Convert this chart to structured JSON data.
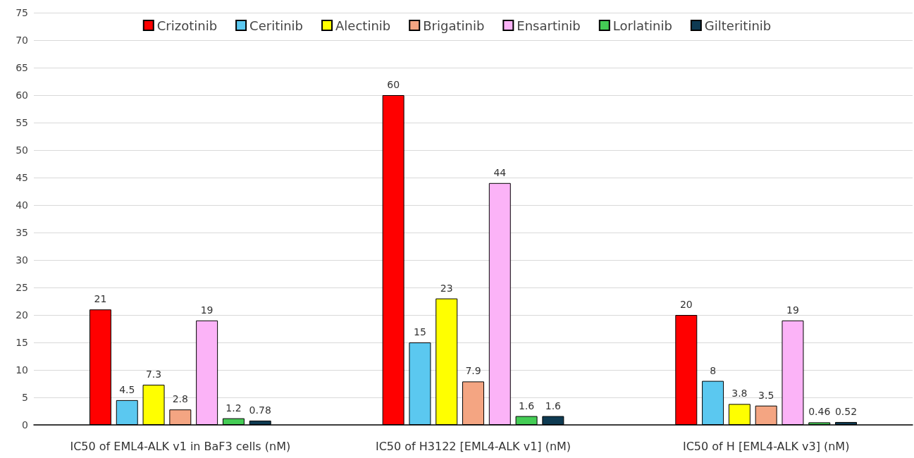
{
  "chart_data": {
    "type": "bar",
    "categories": [
      "IC50 of EML4-ALK v1 in BaF3 cells (nM)",
      "IC50 of H3122 [EML4-ALK v1] (nM)",
      "IC50 of H [EML4-ALK v3] (nM)"
    ],
    "series": [
      {
        "name": "Crizotinib",
        "color": "#ff0000",
        "values": [
          21,
          60,
          20
        ]
      },
      {
        "name": "Ceritinib",
        "color": "#5bc8f0",
        "values": [
          4.5,
          15,
          8
        ]
      },
      {
        "name": "Alectinib",
        "color": "#ffff00",
        "values": [
          7.3,
          23,
          3.8
        ]
      },
      {
        "name": "Brigatinib",
        "color": "#f4a582",
        "values": [
          2.8,
          7.9,
          3.5
        ]
      },
      {
        "name": "Ensartinib",
        "color": "#fbb3f7",
        "values": [
          19,
          44,
          19
        ]
      },
      {
        "name": "Lorlatinib",
        "color": "#44cc55",
        "values": [
          1.2,
          1.6,
          0.46
        ]
      },
      {
        "name": "Gilteritinib",
        "color": "#0e3a52",
        "values": [
          0.78,
          1.6,
          0.52
        ]
      }
    ],
    "ylim": [
      0,
      75
    ],
    "yticks": [
      0,
      5,
      10,
      15,
      20,
      25,
      30,
      35,
      40,
      45,
      50,
      55,
      60,
      65,
      70,
      75
    ],
    "grid": "y",
    "legend": "top",
    "data_labels": true
  }
}
